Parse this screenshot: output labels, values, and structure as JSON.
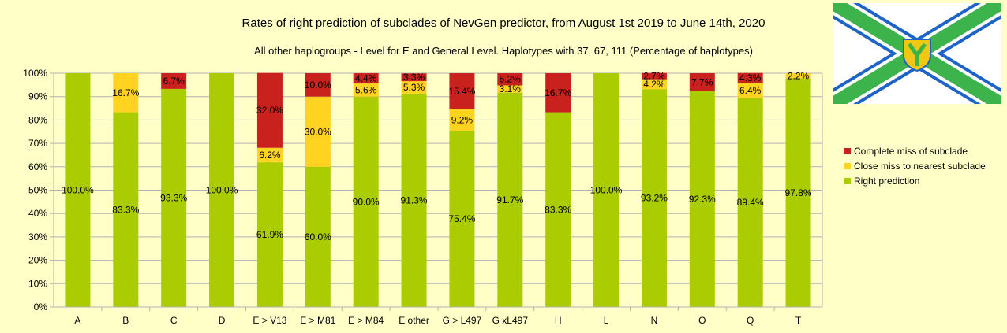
{
  "chart_data": {
    "type": "bar",
    "stacked": true,
    "title": "Rates of right prediction of subclades of NevGen predictor, from August 1st 2019 to June 14th, 2020",
    "subtitle": "All other haplogroups - Level for E and General Level. Haplotypes with 37, 67, 111 (Percentage of haplotypes)",
    "xlabel": "",
    "ylabel": "",
    "ylim": [
      0,
      100
    ],
    "yticks": [
      "0%",
      "10%",
      "20%",
      "30%",
      "40%",
      "50%",
      "60%",
      "70%",
      "80%",
      "90%",
      "100%"
    ],
    "grid": true,
    "legend_position": "right",
    "categories": [
      "A",
      "B",
      "C",
      "D",
      "E > V13",
      "E > M81",
      "E > M84",
      "E other",
      "G > L497",
      "G xL497",
      "H",
      "L",
      "N",
      "O",
      "Q",
      "T"
    ],
    "series": [
      {
        "name": "Right prediction",
        "color": "#aacc00",
        "values": [
          100.0,
          83.3,
          93.3,
          100.0,
          61.9,
          60.0,
          90.0,
          91.3,
          75.4,
          91.7,
          83.3,
          100.0,
          93.2,
          92.3,
          89.4,
          97.8
        ],
        "labels": [
          "100.0%",
          "83.3%",
          "93.3%",
          "100.0%",
          "61.9%",
          "60.0%",
          "90.0%",
          "91.3%",
          "75.4%",
          "91.7%",
          "83.3%",
          "100.0%",
          "93.2%",
          "92.3%",
          "89.4%",
          "97.8%"
        ]
      },
      {
        "name": "Close miss to nearest subclade",
        "color": "#ffd320",
        "values": [
          0,
          16.7,
          0,
          0,
          6.2,
          30.0,
          5.6,
          5.3,
          9.2,
          3.1,
          0,
          0,
          4.2,
          0,
          6.4,
          2.2
        ],
        "labels": [
          "",
          "16.7%",
          "",
          "",
          "6.2%",
          "30.0%",
          "5.6%",
          "5.3%",
          "9.2%",
          "3.1%",
          "",
          "",
          "4.2%",
          "",
          "6.4%",
          "2.2%"
        ]
      },
      {
        "name": "Complete miss of subclade",
        "color": "#c9211e",
        "values": [
          0,
          0,
          6.7,
          0,
          32.0,
          10.0,
          4.4,
          3.3,
          15.4,
          5.2,
          16.7,
          0,
          2.7,
          7.7,
          4.3,
          0
        ],
        "labels": [
          "",
          "",
          "6.7%",
          "",
          "32.0%",
          "10.0%",
          "4.4%",
          "3.3%",
          "15.4%",
          "5.2%",
          "16.7%",
          "",
          "2.7%",
          "7.7%",
          "4.3%",
          ""
        ]
      }
    ],
    "legend": [
      "Complete miss of subclade",
      "Close miss to nearest subclade",
      "Right prediction"
    ]
  },
  "logo": {
    "icon": "flag-emblem-icon",
    "colors": {
      "green": "#3cb44b",
      "blue": "#1e64c8",
      "yellow": "#f0c814"
    }
  }
}
